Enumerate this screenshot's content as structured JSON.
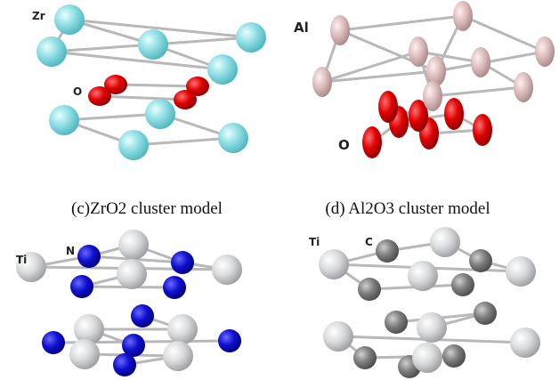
{
  "panels": [
    {
      "atom_labels": [
        "Zr",
        "O"
      ]
    },
    {
      "atom_labels": [
        "Al",
        "O"
      ]
    },
    {
      "atom_labels": [
        "Ti",
        "N"
      ]
    },
    {
      "atom_labels": [
        "Ti",
        "C"
      ]
    }
  ],
  "captions": [
    "(c)ZrO2 cluster model",
    "(d) Al2O3 cluster model"
  ]
}
